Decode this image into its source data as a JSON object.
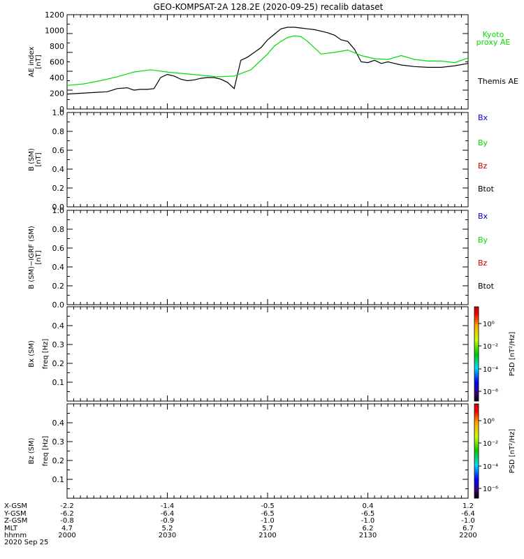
{
  "title": "GEO-KOMPSAT-2A 128.2E (2020-09-25) recalib dataset",
  "colors": {
    "axis": "#000000",
    "themis": "#000000",
    "kyoto": "#00dd00",
    "bx": "#0000cc",
    "by": "#00dd00",
    "bz": "#cc0000",
    "btot": "#000000"
  },
  "chart_data": [
    {
      "type": "line",
      "panel": "ae",
      "ylabel": "AE index",
      "yunit": "[nT]",
      "ylim": [
        0,
        1200
      ],
      "yticks": [
        "0",
        "200",
        "400",
        "600",
        "800",
        "1000",
        "1200"
      ],
      "xlim": [
        0,
        120
      ],
      "series": [
        {
          "name": "Themis AE",
          "x": [
            0,
            4,
            8,
            12,
            15,
            18,
            20,
            22,
            24,
            26,
            28,
            30,
            32,
            34,
            36,
            38,
            40,
            42,
            44,
            46,
            48,
            50,
            52,
            54,
            56,
            58,
            60,
            62,
            64,
            66,
            68,
            70,
            72,
            74,
            76,
            78,
            80,
            82,
            84,
            86,
            88,
            90,
            92,
            94,
            96,
            98,
            100,
            104,
            108,
            112,
            116,
            120
          ],
          "y": [
            190,
            200,
            210,
            220,
            260,
            270,
            240,
            250,
            250,
            260,
            400,
            440,
            420,
            380,
            360,
            370,
            390,
            400,
            400,
            380,
            340,
            260,
            620,
            660,
            720,
            780,
            880,
            950,
            1020,
            1040,
            1040,
            1030,
            1020,
            1010,
            990,
            970,
            940,
            880,
            860,
            760,
            600,
            590,
            620,
            580,
            600,
            580,
            560,
            540,
            530,
            530,
            550,
            580
          ]
        },
        {
          "name": "Kyoto proxy AE",
          "x": [
            0,
            5,
            10,
            15,
            20,
            25,
            30,
            35,
            40,
            45,
            50,
            55,
            60,
            62,
            64,
            66,
            68,
            70,
            72,
            76,
            80,
            84,
            88,
            92,
            96,
            100,
            104,
            108,
            112,
            116,
            120
          ],
          "y": [
            300,
            320,
            360,
            410,
            470,
            500,
            470,
            450,
            430,
            410,
            420,
            500,
            700,
            800,
            860,
            910,
            930,
            920,
            860,
            700,
            720,
            750,
            680,
            640,
            630,
            680,
            630,
            610,
            610,
            590,
            650
          ]
        }
      ]
    },
    {
      "type": "line",
      "panel": "b",
      "ylabel": "B (SM)",
      "yunit": "[nT]",
      "ylim": [
        0,
        1
      ],
      "yticks": [
        "0.0",
        "0.2",
        "0.4",
        "0.6",
        "0.8",
        "1.0"
      ],
      "legend": [
        "Bx",
        "By",
        "Bz",
        "Btot"
      ],
      "series": []
    },
    {
      "type": "line",
      "panel": "b-igrf",
      "ylabel": "B (SM)−IGRF (SM)",
      "yunit": "[nT]",
      "ylim": [
        0,
        1
      ],
      "yticks": [
        "0.0",
        "0.2",
        "0.4",
        "0.6",
        "0.8",
        "1.0"
      ],
      "legend": [
        "Bx",
        "By",
        "Bz",
        "Btot"
      ],
      "series": []
    },
    {
      "type": "heatmap",
      "panel": "bx-psd",
      "ylabel": "Bx (SM)",
      "ylabel2": "freq [Hz]",
      "ylim": [
        0,
        0.5
      ],
      "yticks": [
        "0.1",
        "0.2",
        "0.3",
        "0.4"
      ],
      "colorbar_label": "PSD [nT²/Hz]",
      "colorbar_ticks": [
        "10⁰",
        "10⁻²",
        "10⁻⁴",
        "10⁻⁶"
      ],
      "series": []
    },
    {
      "type": "heatmap",
      "panel": "bz-psd",
      "ylabel": "Bz (SM)",
      "ylabel2": "freq [Hz]",
      "ylim": [
        0,
        0.5
      ],
      "yticks": [
        "0.1",
        "0.2",
        "0.3",
        "0.4"
      ],
      "colorbar_label": "PSD [nT²/Hz]",
      "colorbar_ticks": [
        "10⁰",
        "10⁻²",
        "10⁻⁴",
        "10⁻⁶"
      ],
      "series": []
    }
  ],
  "xaxis": {
    "row_labels": [
      "X-GSM",
      "Y-GSM",
      "Z-GSM",
      "MLT",
      "hhmm"
    ],
    "columns": [
      [
        "-2.2",
        "-6.2",
        "-0.8",
        "4.7",
        "2000"
      ],
      [
        "-1.4",
        "-6.4",
        "-0.9",
        "5.2",
        "2030"
      ],
      [
        "-0.5",
        "-6.5",
        "-1.0",
        "5.7",
        "2100"
      ],
      [
        "0.4",
        "-6.5",
        "-1.0",
        "6.2",
        "2130"
      ],
      [
        "1.2",
        "-6.4",
        "-1.0",
        "6.7",
        "2200"
      ]
    ],
    "date": "2020 Sep 25"
  }
}
